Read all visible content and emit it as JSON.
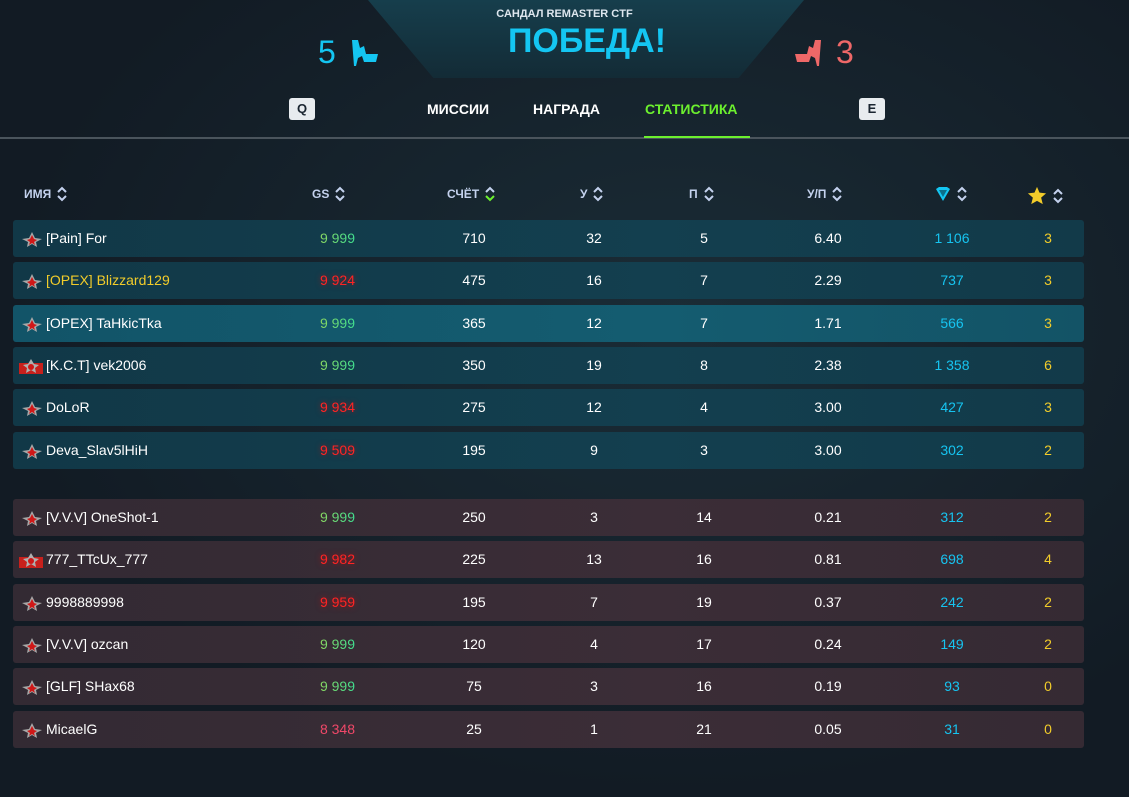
{
  "header": {
    "map": "САНДАЛ REMASTER CTF",
    "result": "ПОБЕДА!",
    "blue_score": "5",
    "red_score": "3",
    "blue_color": "#14c6f2",
    "red_color": "#ee6868"
  },
  "tabs": {
    "prev_key": "Q",
    "next_key": "E",
    "items": [
      {
        "label": "МИССИИ"
      },
      {
        "label": "НАГРАДА"
      },
      {
        "label": "СТАТИСТИКА",
        "active": true
      }
    ],
    "active_color": "#6cf02e"
  },
  "columns": {
    "name": "ИМЯ",
    "gs": "GS",
    "score": "СЧЁТ",
    "kills": "У",
    "deaths": "П",
    "kd": "У/П",
    "crystals": "crystal-icon",
    "stars": "star-icon"
  },
  "blue_team": [
    {
      "name": "[Pain] For",
      "gs": "9 999",
      "gs_color": "green",
      "score": "710",
      "kills": "32",
      "deaths": "5",
      "kd": "6.40",
      "crystals": "1 106",
      "stars": "3",
      "rank": "star"
    },
    {
      "name": "[OPEX] Blizzard129",
      "gs": "9 924",
      "gs_color": "red",
      "score": "475",
      "kills": "16",
      "deaths": "7",
      "kd": "2.29",
      "crystals": "737",
      "stars": "3",
      "rank": "star",
      "self": true
    },
    {
      "name": "[OPEX] TaHkicTka",
      "gs": "9 999",
      "gs_color": "green",
      "score": "365",
      "kills": "12",
      "deaths": "7",
      "kd": "1.71",
      "crystals": "566",
      "stars": "3",
      "rank": "star",
      "highlight": true
    },
    {
      "name": "[K.C.T] vek2006",
      "gs": "9 999",
      "gs_color": "green",
      "score": "350",
      "kills": "19",
      "deaths": "8",
      "kd": "2.38",
      "crystals": "1 358",
      "stars": "6",
      "rank": "banner"
    },
    {
      "name": "DoLoR",
      "gs": "9 934",
      "gs_color": "red",
      "score": "275",
      "kills": "12",
      "deaths": "4",
      "kd": "3.00",
      "crystals": "427",
      "stars": "3",
      "rank": "star"
    },
    {
      "name": "Deva_Slav5lHiH",
      "gs": "9 509",
      "gs_color": "red",
      "score": "195",
      "kills": "9",
      "deaths": "3",
      "kd": "3.00",
      "crystals": "302",
      "stars": "2",
      "rank": "star"
    }
  ],
  "red_team": [
    {
      "name": "[V.V.V] OneShot-1",
      "gs": "9 999",
      "gs_color": "green",
      "score": "250",
      "kills": "3",
      "deaths": "14",
      "kd": "0.21",
      "crystals": "312",
      "stars": "2",
      "rank": "star"
    },
    {
      "name": "777_TTcUx_777",
      "gs": "9 982",
      "gs_color": "red",
      "score": "225",
      "kills": "13",
      "deaths": "16",
      "kd": "0.81",
      "crystals": "698",
      "stars": "4",
      "rank": "banner"
    },
    {
      "name": "9998889998",
      "gs": "9 959",
      "gs_color": "red",
      "score": "195",
      "kills": "7",
      "deaths": "19",
      "kd": "0.37",
      "crystals": "242",
      "stars": "2",
      "rank": "star"
    },
    {
      "name": "[V.V.V] ozcan",
      "gs": "9 999",
      "gs_color": "green",
      "score": "120",
      "kills": "4",
      "deaths": "17",
      "kd": "0.24",
      "crystals": "149",
      "stars": "2",
      "rank": "star"
    },
    {
      "name": "[GLF] SHax68",
      "gs": "9 999",
      "gs_color": "green",
      "score": "75",
      "kills": "3",
      "deaths": "16",
      "kd": "0.19",
      "crystals": "93",
      "stars": "0",
      "rank": "star"
    },
    {
      "name": "MicaelG",
      "gs": "8 348",
      "gs_color": "pink",
      "score": "25",
      "kills": "1",
      "deaths": "21",
      "kd": "0.05",
      "crystals": "31",
      "stars": "0",
      "rank": "star"
    }
  ]
}
